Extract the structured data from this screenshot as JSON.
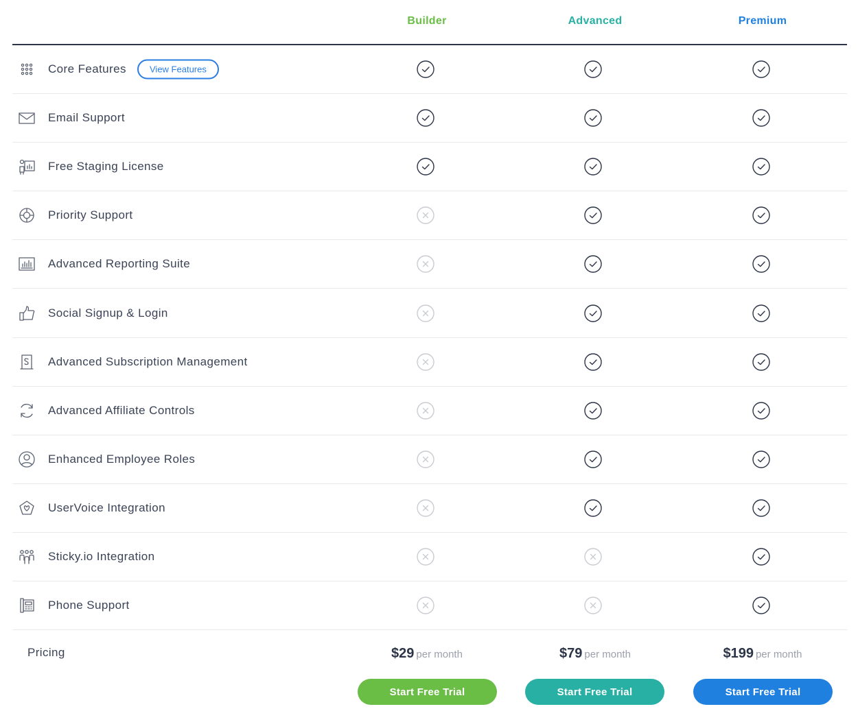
{
  "plans": [
    {
      "name": "Builder",
      "color": "#6abd45",
      "price": "$29",
      "per": "per month",
      "cta": "Start Free Trial"
    },
    {
      "name": "Advanced",
      "color": "#27b0a3",
      "price": "$79",
      "per": "per month",
      "cta": "Start Free Trial"
    },
    {
      "name": "Premium",
      "color": "#1f80e0",
      "price": "$199",
      "per": "per month",
      "cta": "Start Free Trial"
    }
  ],
  "features": [
    {
      "label": "Core Features",
      "icon": "grid-dots-icon",
      "button": "View Features",
      "included": [
        true,
        true,
        true
      ]
    },
    {
      "label": "Email Support",
      "icon": "envelope-icon",
      "included": [
        true,
        true,
        true
      ]
    },
    {
      "label": "Free Staging License",
      "icon": "presenter-chart-icon",
      "included": [
        true,
        true,
        true
      ]
    },
    {
      "label": "Priority Support",
      "icon": "lifebuoy-icon",
      "included": [
        false,
        true,
        true
      ]
    },
    {
      "label": "Advanced Reporting Suite",
      "icon": "bar-chart-icon",
      "included": [
        false,
        true,
        true
      ]
    },
    {
      "label": "Social Signup & Login",
      "icon": "thumbs-up-icon",
      "included": [
        false,
        true,
        true
      ]
    },
    {
      "label": "Advanced Subscription Management",
      "icon": "receipt-dollar-icon",
      "included": [
        false,
        true,
        true
      ]
    },
    {
      "label": "Advanced Affiliate Controls",
      "icon": "refresh-cycle-icon",
      "included": [
        false,
        true,
        true
      ]
    },
    {
      "label": "Enhanced Employee Roles",
      "icon": "user-circle-icon",
      "included": [
        false,
        true,
        true
      ]
    },
    {
      "label": "UserVoice Integration",
      "icon": "megaphone-heart-icon",
      "included": [
        false,
        true,
        true
      ]
    },
    {
      "label": "Sticky.io Integration",
      "icon": "team-group-icon",
      "included": [
        false,
        false,
        true
      ]
    },
    {
      "label": "Phone Support",
      "icon": "desk-phone-icon",
      "included": [
        false,
        false,
        true
      ]
    }
  ],
  "pricing_label": "Pricing",
  "colors": {
    "check": "#2c3447",
    "cross": "#c9ccd2",
    "row_border": "#e8e9ec",
    "header_rule": "#2c3447",
    "view_button": "#2a7de1"
  }
}
